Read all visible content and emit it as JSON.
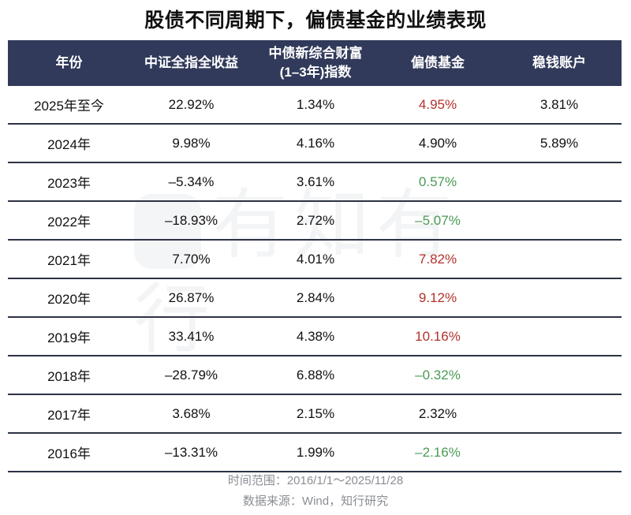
{
  "title": "股债不同周期下，偏债基金的业绩表现",
  "watermark": "有知有行",
  "colors": {
    "header_bg": "#313a5a",
    "positive_highlight": "#b3312b",
    "negative_highlight": "#4a9a55",
    "divider": "#2d3344",
    "footer_text": "#8b8e94"
  },
  "table": {
    "headers": [
      "年份",
      "中证全指全收益",
      "中债新综合财富(1–3年)指数",
      "偏债基金",
      "稳钱账户"
    ],
    "header_lines": {
      "col3_line1": "中债新综合财富",
      "col3_line2": "(1–3年)指数"
    },
    "rows": [
      {
        "year": "2025年至今",
        "csi_all": "22.92%",
        "cba_bond": "1.34%",
        "bond_fund": "4.95%",
        "bond_fund_tone": "pos",
        "steady": "3.81%"
      },
      {
        "year": "2024年",
        "csi_all": "9.98%",
        "cba_bond": "4.16%",
        "bond_fund": "4.90%",
        "bond_fund_tone": "",
        "steady": "5.89%"
      },
      {
        "year": "2023年",
        "csi_all": "–5.34%",
        "cba_bond": "3.61%",
        "bond_fund": "0.57%",
        "bond_fund_tone": "neg",
        "steady": ""
      },
      {
        "year": "2022年",
        "csi_all": "–18.93%",
        "cba_bond": "2.72%",
        "bond_fund": "–5.07%",
        "bond_fund_tone": "neg",
        "steady": ""
      },
      {
        "year": "2021年",
        "csi_all": "7.70%",
        "cba_bond": "4.01%",
        "bond_fund": "7.82%",
        "bond_fund_tone": "pos",
        "steady": ""
      },
      {
        "year": "2020年",
        "csi_all": "26.87%",
        "cba_bond": "2.84%",
        "bond_fund": "9.12%",
        "bond_fund_tone": "pos",
        "steady": ""
      },
      {
        "year": "2019年",
        "csi_all": "33.41%",
        "cba_bond": "4.38%",
        "bond_fund": "10.16%",
        "bond_fund_tone": "pos",
        "steady": ""
      },
      {
        "year": "2018年",
        "csi_all": "–28.79%",
        "cba_bond": "6.88%",
        "bond_fund": "–0.32%",
        "bond_fund_tone": "neg",
        "steady": ""
      },
      {
        "year": "2017年",
        "csi_all": "3.68%",
        "cba_bond": "2.15%",
        "bond_fund": "2.32%",
        "bond_fund_tone": "",
        "steady": ""
      },
      {
        "year": "2016年",
        "csi_all": "–13.31%",
        "cba_bond": "1.99%",
        "bond_fund": "–2.16%",
        "bond_fund_tone": "neg",
        "steady": ""
      }
    ]
  },
  "footer": {
    "time_range": "时间范围：2016/1/1～2025/11/28",
    "source": "数据来源：Wind，知行研究"
  }
}
